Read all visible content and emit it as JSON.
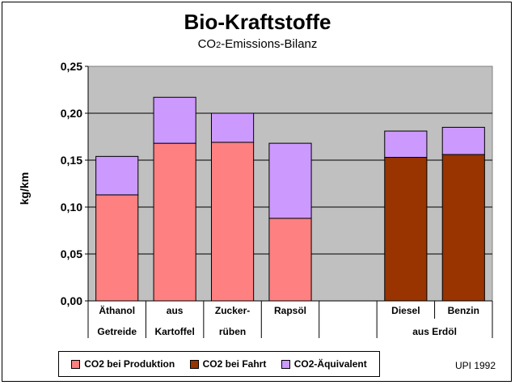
{
  "chart_data": {
    "type": "bar",
    "stacked": true,
    "title": "Bio-Kraftstoffe",
    "subtitle": {
      "main": "CO",
      "sub": "2",
      "rest": "-Emissions-Bilanz"
    },
    "ylabel": "kg/km",
    "ylim": [
      0,
      0.25
    ],
    "yticks": [
      "0,00",
      "0,05",
      "0,10",
      "0,15",
      "0,20",
      "0,25"
    ],
    "grid": true,
    "legend_position": "bottom",
    "categories": [
      {
        "line1": "Äthanol",
        "line2": "Getreide"
      },
      {
        "line1": "aus",
        "line2": "Kartoffel"
      },
      {
        "line1": "Zucker-",
        "line2": "rüben"
      },
      {
        "line1": "Rapsöl",
        "line2": ""
      },
      {
        "line1": "",
        "line2": ""
      },
      {
        "line1": "Diesel",
        "line2": ""
      },
      {
        "line1": "Benzin",
        "line2": ""
      }
    ],
    "group_label": "aus Erdöl",
    "series": [
      {
        "name": "CO2 bei Produktion",
        "color": "#ff8080",
        "values": [
          0.113,
          0.168,
          0.169,
          0.088,
          null,
          0,
          0
        ]
      },
      {
        "name": "CO2 bei Fahrt",
        "color": "#993300",
        "values": [
          0,
          0,
          0,
          0,
          null,
          0.153,
          0.156
        ]
      },
      {
        "name": "CO2-Äquivalent",
        "color": "#cc99ff",
        "values": [
          0.041,
          0.049,
          0.031,
          0.08,
          null,
          0.028,
          0.029
        ]
      }
    ],
    "plot_background": "#c0c0c0"
  },
  "source_note": "UPI 1992"
}
